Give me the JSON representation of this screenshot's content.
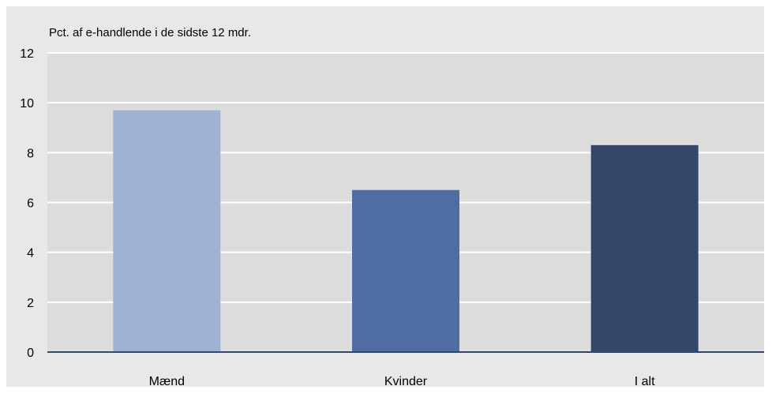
{
  "chart_data": {
    "type": "bar",
    "unit_label": "Pct. af e-handlende i de sidste 12 mdr.",
    "categories": [
      "Mænd",
      "Kvinder",
      "I alt"
    ],
    "values": [
      9.7,
      6.5,
      8.3
    ],
    "bar_colors": [
      "#a0b2d4",
      "#4f6ca3",
      "#344669"
    ],
    "ylim": [
      0,
      12
    ],
    "yticks": [
      0,
      2,
      4,
      6,
      8,
      10,
      12
    ],
    "grid": true,
    "plot_background": "#dcdcdc",
    "frame_background": "#e8e8e8",
    "gridline_color": "#ffffff",
    "axis_color": "#344669"
  }
}
